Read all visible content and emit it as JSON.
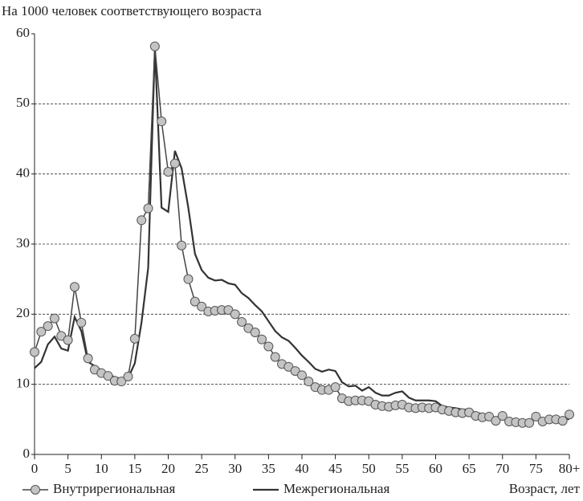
{
  "chart_data": {
    "type": "line",
    "title": "На 1000 человек соответствующего возраста",
    "xlabel": "Возраст, лет",
    "x": [
      0,
      1,
      2,
      3,
      4,
      5,
      6,
      7,
      8,
      9,
      10,
      11,
      12,
      13,
      14,
      15,
      16,
      17,
      18,
      19,
      20,
      21,
      22,
      23,
      24,
      25,
      26,
      27,
      28,
      29,
      30,
      31,
      32,
      33,
      34,
      35,
      36,
      37,
      38,
      39,
      40,
      41,
      42,
      43,
      44,
      45,
      46,
      47,
      48,
      49,
      50,
      51,
      52,
      53,
      54,
      55,
      56,
      57,
      58,
      59,
      60,
      61,
      62,
      63,
      64,
      65,
      66,
      67,
      68,
      69,
      70,
      71,
      72,
      73,
      74,
      75,
      76,
      77,
      78,
      79,
      80
    ],
    "series": [
      {
        "name": "Внутрирегиональная",
        "color": "#c4c4c4",
        "marker": "circle",
        "values": [
          14.6,
          17.5,
          18.3,
          19.4,
          16.9,
          16.3,
          23.9,
          18.8,
          13.7,
          12.1,
          11.6,
          11.2,
          10.5,
          10.4,
          11.1,
          16.5,
          33.4,
          35.1,
          58.2,
          47.5,
          40.3,
          41.5,
          29.8,
          25.0,
          21.8,
          21.1,
          20.4,
          20.5,
          20.6,
          20.6,
          20.0,
          18.9,
          18.0,
          17.4,
          16.4,
          15.4,
          13.9,
          12.9,
          12.5,
          11.9,
          11.3,
          10.4,
          9.6,
          9.2,
          9.2,
          9.6,
          8.0,
          7.6,
          7.7,
          7.7,
          7.6,
          7.1,
          6.9,
          6.8,
          7.0,
          7.1,
          6.7,
          6.6,
          6.7,
          6.6,
          6.7,
          6.4,
          6.2,
          6.0,
          5.9,
          6.0,
          5.5,
          5.3,
          5.4,
          4.8,
          5.5,
          4.7,
          4.6,
          4.5,
          4.5,
          5.4,
          4.7,
          5.0,
          5.0,
          4.8,
          5.7
        ]
      },
      {
        "name": "Межрегиональная",
        "color": "#333333",
        "marker": "none",
        "values": [
          12.3,
          13.2,
          15.7,
          16.8,
          15.1,
          14.8,
          19.6,
          17.6,
          13.2,
          12.6,
          12.0,
          11.5,
          11.0,
          10.8,
          10.9,
          13.0,
          18.8,
          26.6,
          58.0,
          35.2,
          34.6,
          43.3,
          40.8,
          35.2,
          28.6,
          26.3,
          25.2,
          24.8,
          24.9,
          24.4,
          24.2,
          23.0,
          22.3,
          21.3,
          20.4,
          19.0,
          17.6,
          16.7,
          16.2,
          15.2,
          14.1,
          13.2,
          12.2,
          11.8,
          12.1,
          11.9,
          10.3,
          9.7,
          9.8,
          9.1,
          9.6,
          8.8,
          8.4,
          8.4,
          8.8,
          9.0,
          8.1,
          7.7,
          7.7,
          7.7,
          7.6,
          6.9,
          6.7,
          6.6,
          6.4,
          6.4,
          5.9,
          5.8,
          5.6,
          5.2,
          5.7,
          4.8,
          4.8,
          4.9,
          4.8,
          4.9,
          5.0,
          4.9,
          4.9,
          5.2,
          5.0
        ]
      }
    ],
    "xlim": [
      0,
      80
    ],
    "xticks": [
      0,
      5,
      10,
      15,
      20,
      25,
      30,
      35,
      40,
      45,
      50,
      55,
      60,
      65,
      70,
      75,
      {
        "value": 80,
        "label": "80+"
      }
    ],
    "ylim": [
      0,
      60
    ],
    "yticks": [
      0,
      10,
      20,
      30,
      40,
      50,
      60
    ],
    "grid": true,
    "legend": "bottom"
  }
}
